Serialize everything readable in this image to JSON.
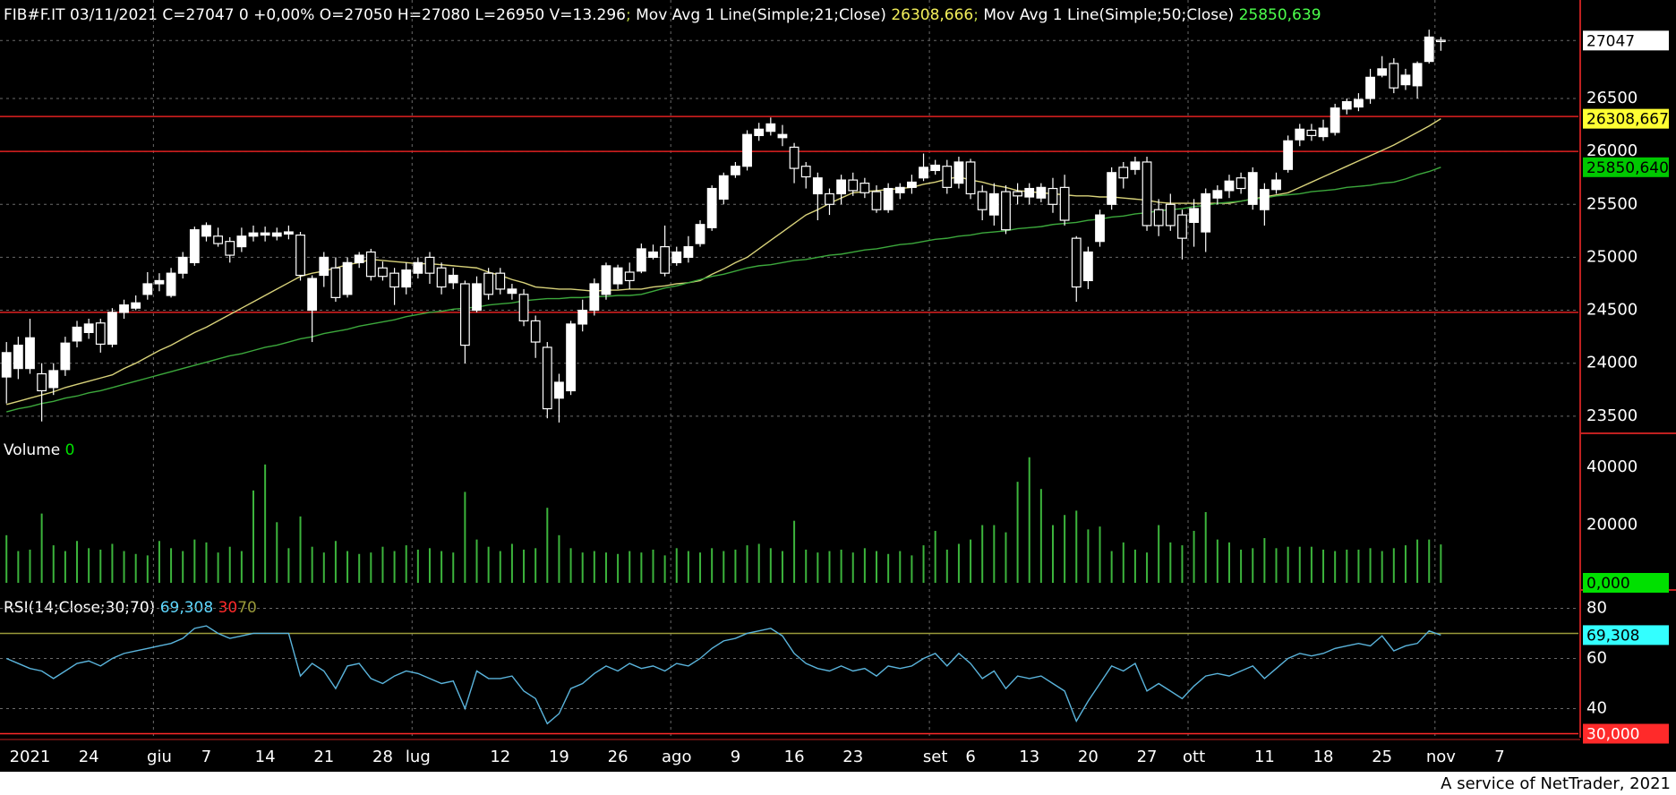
{
  "x_axis": {
    "xlim": [
      -0.55,
      133.7
    ],
    "ticks": [
      {
        "value": 2,
        "label": "2021"
      },
      {
        "value": 7,
        "label": "24"
      },
      {
        "value": 13,
        "label": "giu",
        "grid": true
      },
      {
        "value": 17,
        "label": "7"
      },
      {
        "value": 22,
        "label": "14"
      },
      {
        "value": 27,
        "label": "21"
      },
      {
        "value": 32,
        "label": "28"
      },
      {
        "value": 35,
        "label": "lug",
        "grid": true
      },
      {
        "value": 42,
        "label": "12"
      },
      {
        "value": 47,
        "label": "19"
      },
      {
        "value": 52,
        "label": "26"
      },
      {
        "value": 57,
        "label": "ago",
        "grid": true
      },
      {
        "value": 62,
        "label": "9"
      },
      {
        "value": 67,
        "label": "16"
      },
      {
        "value": 72,
        "label": "23"
      },
      {
        "value": 79,
        "label": "set",
        "grid": true
      },
      {
        "value": 82,
        "label": "6"
      },
      {
        "value": 87,
        "label": "13"
      },
      {
        "value": 92,
        "label": "20"
      },
      {
        "value": 97,
        "label": "27"
      },
      {
        "value": 101,
        "label": "ott",
        "grid": true
      },
      {
        "value": 107,
        "label": "11"
      },
      {
        "value": 112,
        "label": "18"
      },
      {
        "value": 117,
        "label": "25"
      },
      {
        "value": 122,
        "label": "nov",
        "grid": true
      },
      {
        "value": 127,
        "label": "7"
      }
    ]
  },
  "chart_data": [
    {
      "type": "candlestick",
      "title": "FIB#F.IT 03/11/2021 C=27047 0 +0,00% O=27050 H=27080 L=26950 V=13.296",
      "separator": ";",
      "ylim": [
        23338,
        27430
      ],
      "yticks": [
        23500,
        24000,
        24500,
        25000,
        25500,
        26000,
        26500
      ],
      "grid": true,
      "hlines": [
        26330,
        26000,
        24480
      ],
      "hline_color": "#e02020",
      "up_color": "#ffffff",
      "down_color": "#000000",
      "open": [
        23870,
        23950,
        23950,
        23900,
        23770,
        23940,
        24210,
        24290,
        24380,
        24180,
        24480,
        24520,
        24650,
        24750,
        24640,
        24850,
        24950,
        25200,
        25200,
        25150,
        25100,
        25200,
        25210,
        25200,
        25220,
        25210,
        24500,
        24830,
        24900,
        24650,
        24950,
        25050,
        24900,
        24850,
        24720,
        24850,
        25000,
        24900,
        24760,
        24750,
        24500,
        24850,
        24850,
        24660,
        24650,
        24400,
        24150,
        23670,
        23740,
        24370,
        24500,
        24650,
        24750,
        24860,
        24870,
        25000,
        25100,
        24950,
        25000,
        25130,
        25280,
        25550,
        25780,
        25860,
        26150,
        26190,
        26130,
        26040,
        25860,
        25600,
        25600,
        25600,
        25730,
        25700,
        25620,
        25450,
        25610,
        25660,
        25750,
        25820,
        25860,
        25700,
        25900,
        25620,
        25400,
        25620,
        25620,
        25570,
        25560,
        25650,
        25660,
        25180,
        24780,
        25150,
        25500,
        25850,
        25830,
        25900,
        25450,
        25500,
        25400,
        25330,
        25240,
        25560,
        25630,
        25750,
        25500,
        25450,
        25640,
        25830,
        26110,
        26200,
        26140,
        26180,
        26400,
        26420,
        26500,
        26720,
        26830,
        26630,
        26620,
        26850,
        27050
      ],
      "high": [
        24200,
        24250,
        24420,
        24000,
        24000,
        24250,
        24400,
        24420,
        24420,
        24520,
        24600,
        24640,
        24860,
        24850,
        24900,
        25050,
        25290,
        25330,
        25280,
        25190,
        25280,
        25300,
        25290,
        25280,
        25300,
        25240,
        24830,
        25050,
        25000,
        25000,
        25050,
        25080,
        24960,
        24900,
        24950,
        25000,
        25050,
        24950,
        24900,
        24780,
        24820,
        24900,
        24900,
        24750,
        24700,
        24450,
        24200,
        23900,
        24400,
        24600,
        24800,
        24950,
        24930,
        24950,
        25130,
        25120,
        25300,
        25100,
        25200,
        25350,
        25680,
        25800,
        25900,
        26200,
        26270,
        26320,
        26250,
        26080,
        25900,
        25800,
        25650,
        25780,
        25800,
        25750,
        25680,
        25700,
        25700,
        25780,
        25980,
        25920,
        25920,
        25950,
        25930,
        25680,
        25700,
        25680,
        25700,
        25700,
        25700,
        25750,
        25780,
        25200,
        25100,
        25450,
        25850,
        25900,
        25950,
        25950,
        25550,
        25600,
        25450,
        25550,
        25650,
        25680,
        25780,
        25800,
        25850,
        25700,
        25800,
        26150,
        26260,
        26260,
        26300,
        26450,
        26500,
        26550,
        26780,
        26900,
        26880,
        26780,
        26850,
        27150,
        27080
      ],
      "low": [
        23620,
        23850,
        23900,
        23450,
        23700,
        23880,
        24150,
        24230,
        24100,
        24150,
        24420,
        24500,
        24600,
        24680,
        24620,
        24800,
        24920,
        25150,
        25100,
        24950,
        25050,
        25150,
        25150,
        25160,
        25170,
        24780,
        24200,
        24720,
        24580,
        24620,
        24900,
        24780,
        24780,
        24550,
        24650,
        24800,
        24750,
        24650,
        24700,
        24000,
        24480,
        24600,
        24650,
        24600,
        24350,
        24050,
        23480,
        23440,
        23700,
        24300,
        24450,
        24600,
        24700,
        24700,
        24850,
        24980,
        24820,
        24920,
        24950,
        25100,
        25250,
        25500,
        25750,
        25820,
        26100,
        26150,
        26050,
        25700,
        25650,
        25350,
        25400,
        25500,
        25580,
        25560,
        25420,
        25420,
        25550,
        25600,
        25720,
        25780,
        25600,
        25650,
        25550,
        25350,
        25300,
        25220,
        25500,
        25500,
        25520,
        25420,
        25300,
        24580,
        24700,
        25100,
        25450,
        25650,
        25780,
        25250,
        25200,
        25250,
        24980,
        25100,
        25050,
        25500,
        25560,
        25600,
        25450,
        25300,
        25600,
        25800,
        26050,
        26100,
        26100,
        26150,
        26350,
        26380,
        26450,
        26700,
        26550,
        26580,
        26500,
        26830,
        26950
      ],
      "close": [
        24100,
        24170,
        24240,
        23740,
        23930,
        24190,
        24340,
        24370,
        24180,
        24480,
        24550,
        24570,
        24750,
        24780,
        24850,
        25000,
        25260,
        25300,
        25130,
        25020,
        25200,
        25230,
        25230,
        25230,
        25240,
        24830,
        24800,
        25000,
        24620,
        24950,
        25020,
        24820,
        24820,
        24720,
        24880,
        24950,
        24850,
        24720,
        24830,
        24170,
        24750,
        24650,
        24700,
        24700,
        24400,
        24200,
        23570,
        23820,
        24370,
        24500,
        24750,
        24920,
        24900,
        24780,
        25080,
        25050,
        24850,
        25050,
        25100,
        25310,
        25650,
        25770,
        25860,
        26160,
        26210,
        26260,
        26160,
        25840,
        25760,
        25750,
        25500,
        25730,
        25630,
        25610,
        25450,
        25650,
        25660,
        25710,
        25850,
        25870,
        25660,
        25900,
        25600,
        25450,
        25600,
        25260,
        25580,
        25650,
        25660,
        25500,
        25350,
        24720,
        25050,
        25400,
        25800,
        25750,
        25900,
        25300,
        25300,
        25300,
        25180,
        25460,
        25600,
        25630,
        25720,
        25650,
        25800,
        25640,
        25730,
        26100,
        26210,
        26150,
        26220,
        26410,
        26470,
        26490,
        26700,
        26780,
        26600,
        26720,
        26830,
        27080,
        27047
      ],
      "series": [
        {
          "name": "Mov Avg 1 Line(Simple;21;Close)",
          "color": "#d8d27a",
          "label_color": "#f2ee5a",
          "box_color": "#ffff33",
          "value_label": "26308,666",
          "box_label": "26308,667",
          "values": [
            23610,
            23640,
            23670,
            23700,
            23730,
            23770,
            23800,
            23830,
            23860,
            23890,
            23950,
            24000,
            24060,
            24120,
            24170,
            24230,
            24290,
            24340,
            24400,
            24460,
            24520,
            24580,
            24640,
            24700,
            24760,
            24820,
            24850,
            24870,
            24900,
            24930,
            24950,
            24980,
            24970,
            24960,
            24950,
            24940,
            24940,
            24930,
            24920,
            24910,
            24900,
            24860,
            24830,
            24790,
            24760,
            24720,
            24710,
            24700,
            24700,
            24690,
            24680,
            24690,
            24690,
            24700,
            24700,
            24720,
            24730,
            24750,
            24760,
            24780,
            24840,
            24890,
            24950,
            25000,
            25080,
            25160,
            25240,
            25320,
            25400,
            25450,
            25510,
            25560,
            25610,
            25620,
            25630,
            25640,
            25650,
            25660,
            25690,
            25710,
            25740,
            25760,
            25730,
            25710,
            25680,
            25660,
            25630,
            25620,
            25610,
            25600,
            25590,
            25580,
            25580,
            25570,
            25570,
            25560,
            25550,
            25540,
            25520,
            25510,
            25510,
            25510,
            25510,
            25510,
            25510,
            25530,
            25550,
            25570,
            25590,
            25610,
            25660,
            25710,
            25760,
            25810,
            25860,
            25910,
            25960,
            26010,
            26060,
            26120,
            26180,
            26240,
            26308.6665
          ]
        },
        {
          "name": "Mov Avg 1 Line(Simple;50;Close)",
          "color": "#3ca83c",
          "label_color": "#4cff4c",
          "box_color": "#00c800",
          "value_label": "25850,639",
          "box_label": "25850,640",
          "values": [
            23540,
            23570,
            23590,
            23620,
            23640,
            23670,
            23690,
            23720,
            23740,
            23770,
            23800,
            23830,
            23860,
            23890,
            23920,
            23950,
            23980,
            24010,
            24040,
            24070,
            24090,
            24120,
            24150,
            24170,
            24200,
            24230,
            24250,
            24280,
            24300,
            24320,
            24350,
            24370,
            24390,
            24410,
            24440,
            24460,
            24480,
            24490,
            24510,
            24520,
            24530,
            24550,
            24560,
            24570,
            24590,
            24600,
            24610,
            24610,
            24620,
            24620,
            24630,
            24630,
            24640,
            24640,
            24650,
            24680,
            24710,
            24730,
            24760,
            24790,
            24820,
            24840,
            24870,
            24900,
            24920,
            24930,
            24950,
            24970,
            24980,
            25000,
            25020,
            25030,
            25050,
            25070,
            25080,
            25100,
            25120,
            25130,
            25150,
            25170,
            25180,
            25200,
            25210,
            25230,
            25240,
            25250,
            25270,
            25280,
            25290,
            25310,
            25320,
            25330,
            25350,
            25360,
            25380,
            25390,
            25410,
            25420,
            25440,
            25450,
            25460,
            25480,
            25490,
            25510,
            25520,
            25530,
            25550,
            25560,
            25580,
            25590,
            25600,
            25620,
            25630,
            25640,
            25660,
            25670,
            25680,
            25700,
            25710,
            25740,
            25780,
            25810,
            25850.6395
          ]
        }
      ]
    },
    {
      "type": "bar",
      "name": "Volume",
      "current_value": 0,
      "current_label": "0,000",
      "current_color": "#00e000",
      "color": "#3cb43c",
      "ylim": [
        0,
        51800
      ],
      "yticks": [
        20000,
        40000
      ],
      "values": [
        16500,
        11000,
        11500,
        24000,
        13000,
        11000,
        14500,
        12000,
        11500,
        13500,
        11000,
        10000,
        9500,
        14500,
        12000,
        11000,
        15000,
        14000,
        10500,
        12500,
        11000,
        32000,
        41000,
        21000,
        12000,
        23000,
        12500,
        10500,
        14500,
        11000,
        10000,
        10500,
        12500,
        11000,
        13000,
        11500,
        12000,
        11000,
        10500,
        31500,
        15000,
        12500,
        11000,
        13500,
        11500,
        12000,
        26000,
        16500,
        12000,
        10500,
        11000,
        10500,
        10000,
        11000,
        10500,
        11500,
        9500,
        12000,
        11000,
        10500,
        12000,
        11000,
        11500,
        13000,
        13500,
        12000,
        11000,
        21500,
        11500,
        10500,
        11000,
        11500,
        10500,
        12000,
        11000,
        10000,
        11000,
        9500,
        13000,
        18000,
        11500,
        13500,
        15000,
        20000,
        20000,
        17500,
        35000,
        43500,
        32500,
        20000,
        23500,
        25000,
        18500,
        19500,
        11000,
        14000,
        11500,
        10500,
        20000,
        14000,
        13000,
        18000,
        24500,
        15000,
        14000,
        11500,
        12000,
        15500,
        12000,
        12500,
        12500,
        12500,
        11500,
        11000,
        11500,
        11500,
        12000,
        11000,
        12000,
        13000,
        15000,
        15000,
        13296
      ]
    },
    {
      "type": "line",
      "name": "RSI(14;Close;30;70)",
      "color": "#5ab4dc",
      "label_color": "#5fd8ff",
      "box_color": "#33ffff",
      "box_label": "69,308",
      "ylim": [
        28.4,
        87.3
      ],
      "yticks": [
        40,
        60,
        80
      ],
      "grid": true,
      "levels": [
        {
          "value": 30,
          "label": "30",
          "color": "#ff2a2a",
          "box_label": "30,000"
        },
        {
          "value": 70,
          "label": "70",
          "color": "#9a9a3a"
        }
      ],
      "values": [
        60,
        58,
        56,
        55,
        52,
        55,
        58,
        59,
        57,
        60,
        62,
        63,
        64,
        65,
        66,
        68,
        72,
        73,
        70,
        68,
        69,
        70,
        70,
        70,
        70,
        53,
        58,
        55,
        48,
        57,
        58,
        52,
        50,
        53,
        55,
        54,
        52,
        50,
        51,
        40,
        55,
        52,
        52,
        53,
        47,
        44,
        34,
        38,
        48,
        50,
        54,
        57,
        55,
        58,
        56,
        57,
        55,
        58,
        57,
        60,
        64,
        67,
        68,
        70,
        71,
        72,
        69,
        62,
        58,
        56,
        55,
        57,
        55,
        56,
        53,
        57,
        56,
        57,
        60,
        62,
        57,
        62,
        58,
        52,
        55,
        48,
        53,
        52,
        53,
        50,
        47,
        35,
        43,
        50,
        57,
        55,
        58,
        47,
        50,
        47,
        44,
        49,
        53,
        54,
        53,
        55,
        57,
        52,
        56,
        60,
        62,
        61,
        62,
        64,
        65,
        66,
        65,
        69,
        63,
        65,
        66,
        71,
        69.308
      ]
    }
  ],
  "footer": "A service of NetTrader, 2021"
}
